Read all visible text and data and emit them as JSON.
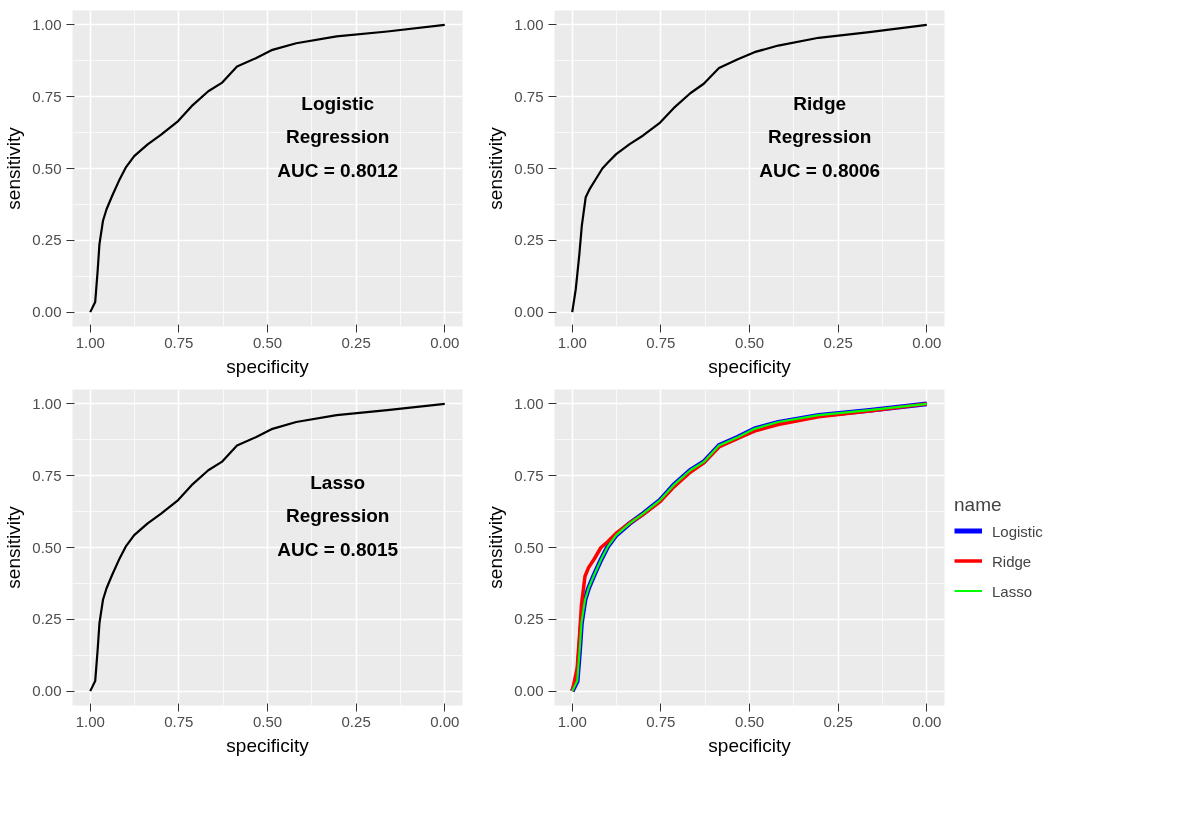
{
  "chart_data": [
    {
      "type": "line",
      "xlabel": "specificity",
      "ylabel": "sensitivity",
      "annotations": [
        "Logistic\nRegression\nAUC = 0.8012"
      ],
      "xlim": [
        1.05,
        -0.05
      ],
      "ylim": [
        -0.05,
        1.05
      ],
      "xticks": [
        {
          "value": 1,
          "label": "1.00"
        },
        {
          "value": 0.75,
          "label": "0.75"
        },
        {
          "value": 0.5,
          "label": "0.50"
        },
        {
          "value": 0.25,
          "label": "0.25"
        },
        {
          "value": 0,
          "label": "0.00"
        }
      ],
      "yticks": [
        {
          "value": 0,
          "label": "0.00"
        },
        {
          "value": 0.25,
          "label": "0.25"
        },
        {
          "value": 0.5,
          "label": "0.50"
        },
        {
          "value": 0.75,
          "label": "0.75"
        },
        {
          "value": 1,
          "label": "1.00"
        }
      ],
      "grid": true,
      "legend": false,
      "x": [
        1,
        0.986,
        0.979,
        0.974,
        0.964,
        0.954,
        0.938,
        0.919,
        0.9,
        0.876,
        0.838,
        0.8,
        0.752,
        0.714,
        0.667,
        0.629,
        0.586,
        0.533,
        0.486,
        0.419,
        0.305,
        0.162,
        0
      ],
      "series": [
        {
          "color": "#000000",
          "values": [
            0,
            0.035,
            0.145,
            0.237,
            0.318,
            0.358,
            0.405,
            0.457,
            0.503,
            0.543,
            0.584,
            0.618,
            0.665,
            0.717,
            0.769,
            0.798,
            0.855,
            0.884,
            0.913,
            0.936,
            0.96,
            0.977,
            1
          ]
        }
      ]
    },
    {
      "type": "line",
      "xlabel": "specificity",
      "ylabel": "sensitivity",
      "annotations": [
        "Ridge\nRegression\nAUC = 0.8006"
      ],
      "xlim": [
        1.05,
        -0.05
      ],
      "ylim": [
        -0.05,
        1.05
      ],
      "xticks": [
        {
          "value": 1,
          "label": "1.00"
        },
        {
          "value": 0.75,
          "label": "0.75"
        },
        {
          "value": 0.5,
          "label": "0.50"
        },
        {
          "value": 0.25,
          "label": "0.25"
        },
        {
          "value": 0,
          "label": "0.00"
        }
      ],
      "yticks": [
        {
          "value": 0,
          "label": "0.00"
        },
        {
          "value": 0.25,
          "label": "0.25"
        },
        {
          "value": 0.5,
          "label": "0.50"
        },
        {
          "value": 0.75,
          "label": "0.75"
        },
        {
          "value": 1,
          "label": "1.00"
        }
      ],
      "grid": true,
      "legend": false,
      "x": [
        1,
        0.99,
        0.98,
        0.973,
        0.962,
        0.95,
        0.935,
        0.915,
        0.9,
        0.876,
        0.838,
        0.8,
        0.752,
        0.714,
        0.667,
        0.629,
        0.586,
        0.533,
        0.486,
        0.419,
        0.305,
        0.162,
        0
      ],
      "series": [
        {
          "color": "#000000",
          "values": [
            0,
            0.08,
            0.2,
            0.3,
            0.4,
            0.43,
            0.46,
            0.5,
            0.52,
            0.55,
            0.585,
            0.615,
            0.66,
            0.71,
            0.762,
            0.795,
            0.85,
            0.88,
            0.905,
            0.928,
            0.955,
            0.975,
            1
          ]
        }
      ]
    },
    {
      "type": "line",
      "xlabel": "specificity",
      "ylabel": "sensitivity",
      "annotations": [
        "Lasso\nRegression\nAUC = 0.8015"
      ],
      "xlim": [
        1.05,
        -0.05
      ],
      "ylim": [
        -0.05,
        1.05
      ],
      "xticks": [
        {
          "value": 1,
          "label": "1.00"
        },
        {
          "value": 0.75,
          "label": "0.75"
        },
        {
          "value": 0.5,
          "label": "0.50"
        },
        {
          "value": 0.25,
          "label": "0.25"
        },
        {
          "value": 0,
          "label": "0.00"
        }
      ],
      "yticks": [
        {
          "value": 0,
          "label": "0.00"
        },
        {
          "value": 0.25,
          "label": "0.25"
        },
        {
          "value": 0.5,
          "label": "0.50"
        },
        {
          "value": 0.75,
          "label": "0.75"
        },
        {
          "value": 1,
          "label": "1.00"
        }
      ],
      "grid": true,
      "legend": false,
      "x": [
        1,
        0.986,
        0.979,
        0.974,
        0.964,
        0.954,
        0.938,
        0.919,
        0.9,
        0.876,
        0.838,
        0.8,
        0.752,
        0.714,
        0.667,
        0.629,
        0.586,
        0.533,
        0.486,
        0.419,
        0.305,
        0.162,
        0
      ],
      "series": [
        {
          "color": "#000000",
          "values": [
            0,
            0.035,
            0.145,
            0.237,
            0.318,
            0.358,
            0.405,
            0.457,
            0.503,
            0.543,
            0.584,
            0.618,
            0.665,
            0.717,
            0.769,
            0.798,
            0.855,
            0.884,
            0.913,
            0.937,
            0.961,
            0.978,
            1
          ]
        }
      ]
    },
    {
      "type": "line",
      "xlabel": "specificity",
      "ylabel": "sensitivity",
      "legend_title": "name",
      "xlim": [
        1.05,
        -0.05
      ],
      "ylim": [
        -0.05,
        1.05
      ],
      "xticks": [
        {
          "value": 1,
          "label": "1.00"
        },
        {
          "value": 0.75,
          "label": "0.75"
        },
        {
          "value": 0.5,
          "label": "0.50"
        },
        {
          "value": 0.25,
          "label": "0.25"
        },
        {
          "value": 0,
          "label": "0.00"
        }
      ],
      "yticks": [
        {
          "value": 0,
          "label": "0.00"
        },
        {
          "value": 0.25,
          "label": "0.25"
        },
        {
          "value": 0.5,
          "label": "0.50"
        },
        {
          "value": 0.75,
          "label": "0.75"
        },
        {
          "value": 1,
          "label": "1.00"
        }
      ],
      "grid": true,
      "legend": "right",
      "x": [
        1,
        0.986,
        0.979,
        0.974,
        0.964,
        0.954,
        0.938,
        0.919,
        0.9,
        0.876,
        0.838,
        0.8,
        0.752,
        0.714,
        0.667,
        0.629,
        0.586,
        0.533,
        0.486,
        0.419,
        0.305,
        0.162,
        0
      ],
      "series": [
        {
          "name": "Logistic",
          "color": "#0000ff",
          "values": [
            0,
            0.035,
            0.145,
            0.237,
            0.318,
            0.358,
            0.405,
            0.457,
            0.503,
            0.543,
            0.584,
            0.618,
            0.665,
            0.717,
            0.769,
            0.798,
            0.855,
            0.884,
            0.913,
            0.936,
            0.96,
            0.977,
            1
          ]
        },
        {
          "name": "Ridge",
          "color": "#ff0000",
          "values": [
            0,
            0.08,
            0.2,
            0.3,
            0.4,
            0.43,
            0.46,
            0.5,
            0.52,
            0.55,
            0.585,
            0.615,
            0.66,
            0.71,
            0.762,
            0.795,
            0.85,
            0.88,
            0.905,
            0.928,
            0.955,
            0.975,
            1
          ]
        },
        {
          "name": "Lasso",
          "color": "#00ff00",
          "values": [
            0,
            0.035,
            0.145,
            0.237,
            0.318,
            0.358,
            0.405,
            0.457,
            0.503,
            0.543,
            0.584,
            0.618,
            0.665,
            0.717,
            0.769,
            0.798,
            0.855,
            0.884,
            0.913,
            0.937,
            0.961,
            0.978,
            1
          ]
        }
      ]
    }
  ]
}
